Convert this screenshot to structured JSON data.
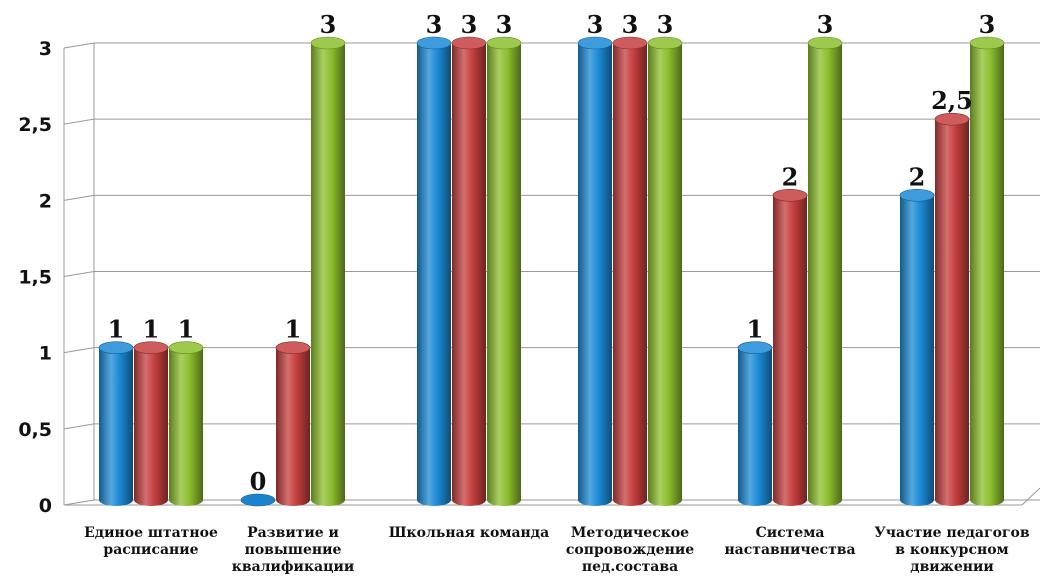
{
  "chart_data": {
    "type": "bar",
    "categories": [
      [
        "Единое штатное",
        "расписание"
      ],
      [
        "Развитие и",
        "повышение",
        "квалификации"
      ],
      [
        "Школьная команда"
      ],
      [
        "Методическое",
        "сопровождение",
        "пед.состава"
      ],
      [
        "Система",
        "наставничества"
      ],
      [
        "Участие педагогов",
        "в конкурсном",
        "движении"
      ]
    ],
    "y_tick_labels": [
      "0",
      "0,5",
      "1",
      "1,5",
      "2",
      "2,5",
      "3"
    ],
    "ylim": [
      0,
      3
    ],
    "grid": true,
    "series": [
      {
        "color": "#1c8ad6",
        "values": [
          1,
          0,
          3,
          3,
          1,
          2
        ],
        "labels": [
          "1",
          "0",
          "3",
          "3",
          "1",
          "2"
        ]
      },
      {
        "color": "#c63f3f",
        "values": [
          1,
          1,
          3,
          3,
          2,
          2.5
        ],
        "labels": [
          "1",
          "1",
          "3",
          "3",
          "2",
          "2,5"
        ]
      },
      {
        "color": "#8cbf2e",
        "values": [
          1,
          3,
          3,
          3,
          3,
          3
        ],
        "labels": [
          "1",
          "3",
          "3",
          "3",
          "3",
          "3"
        ]
      }
    ]
  }
}
